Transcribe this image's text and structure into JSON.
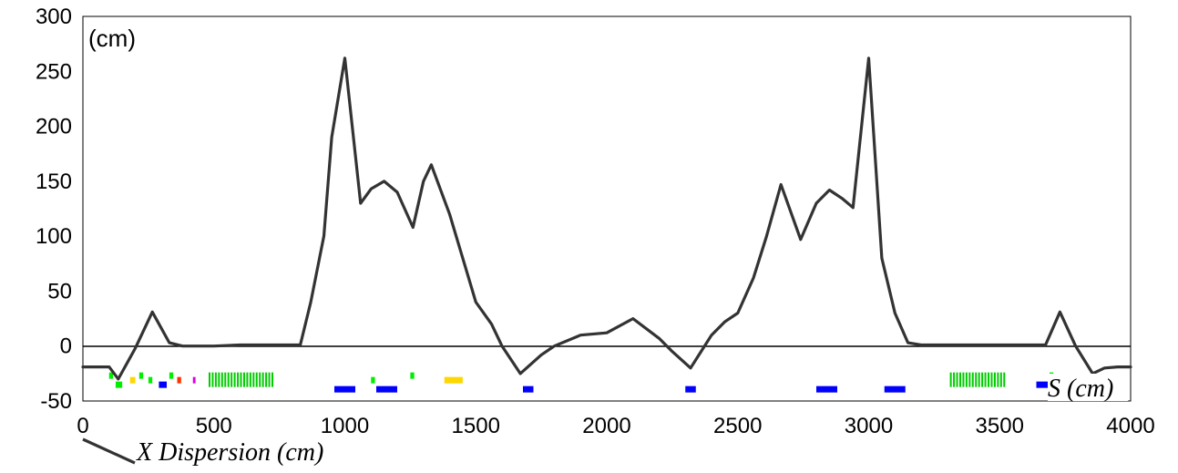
{
  "chart_data": {
    "type": "line",
    "title": "",
    "ylabel": "(cm)",
    "xlabel": "S (cm)",
    "xlim": [
      0,
      4000
    ],
    "ylim": [
      -50,
      300
    ],
    "xticks": [
      "0",
      "500",
      "1000",
      "1500",
      "2000",
      "2500",
      "3000",
      "3500",
      "4000"
    ],
    "yticks": [
      "300",
      "250",
      "200",
      "150",
      "100",
      "50",
      "0",
      "-50"
    ],
    "grid": false,
    "legend": "bottom-left",
    "colors": {
      "series": "#333333",
      "zero_line": "#000000"
    },
    "series": [
      {
        "name": "X Dispersion (cm)",
        "x": [
          0,
          100,
          135,
          200,
          265,
          330,
          380,
          500,
          600,
          700,
          830,
          870,
          920,
          950,
          1000,
          1060,
          1100,
          1150,
          1200,
          1260,
          1300,
          1330,
          1400,
          1500,
          1560,
          1600,
          1670,
          1750,
          1800,
          1900,
          2000,
          2100,
          2200,
          2250,
          2320,
          2400,
          2450,
          2500,
          2560,
          2610,
          2665,
          2740,
          2800,
          2850,
          2900,
          2940,
          3000,
          3050,
          3100,
          3150,
          3200,
          3300,
          3400,
          3500,
          3600,
          3675,
          3730,
          3790,
          3855,
          3900,
          3950,
          4000
        ],
        "y": [
          -19,
          -19,
          -30,
          -2,
          31,
          3,
          0,
          0,
          1,
          1,
          1,
          40,
          100,
          190,
          262,
          130,
          143,
          150,
          140,
          108,
          150,
          165,
          120,
          40,
          20,
          0,
          -25,
          -8,
          0,
          10,
          12,
          25,
          7,
          -5,
          -20,
          10,
          22,
          30,
          62,
          100,
          147,
          97,
          130,
          142,
          134,
          126,
          262,
          80,
          30,
          3,
          1,
          1,
          1,
          1,
          1,
          1,
          31,
          0,
          -25,
          -20,
          -19,
          -19
        ]
      }
    ],
    "lattice_elements": [
      {
        "x": 100,
        "w": 15,
        "row": 0,
        "color": "#00ee00"
      },
      {
        "x": 125,
        "w": 25,
        "row": 2,
        "color": "#00ee00"
      },
      {
        "x": 180,
        "w": 20,
        "row": 1,
        "color": "#ffd700"
      },
      {
        "x": 215,
        "w": 15,
        "row": 0,
        "color": "#00ee00"
      },
      {
        "x": 250,
        "w": 15,
        "row": 1,
        "color": "#00ee00"
      },
      {
        "x": 290,
        "w": 30,
        "row": 2,
        "color": "#0000ff"
      },
      {
        "x": 330,
        "w": 15,
        "row": 0,
        "color": "#00ee00"
      },
      {
        "x": 360,
        "w": 15,
        "row": 1,
        "color": "#ff3300"
      },
      {
        "x": 420,
        "w": 10,
        "row": 1,
        "color": "#dd00dd"
      },
      {
        "x": 960,
        "w": 80,
        "row": 3,
        "color": "#0000ff"
      },
      {
        "x": 1100,
        "w": 15,
        "row": 1,
        "color": "#00ee00"
      },
      {
        "x": 1120,
        "w": 80,
        "row": 3,
        "color": "#0000ff"
      },
      {
        "x": 1250,
        "w": 15,
        "row": 0,
        "color": "#00ee00"
      },
      {
        "x": 1380,
        "w": 70,
        "row": 1,
        "color": "#ffd700"
      },
      {
        "x": 1680,
        "w": 40,
        "row": 3,
        "color": "#0000ff"
      },
      {
        "x": 2300,
        "w": 40,
        "row": 3,
        "color": "#0000ff"
      },
      {
        "x": 2800,
        "w": 80,
        "row": 3,
        "color": "#0000ff"
      },
      {
        "x": 3060,
        "w": 80,
        "row": 3,
        "color": "#0000ff"
      },
      {
        "x": 3640,
        "w": 50,
        "row": 2,
        "color": "#0000ff"
      },
      {
        "x": 3690,
        "w": 15,
        "row": 0,
        "color": "#00ee00"
      }
    ]
  }
}
